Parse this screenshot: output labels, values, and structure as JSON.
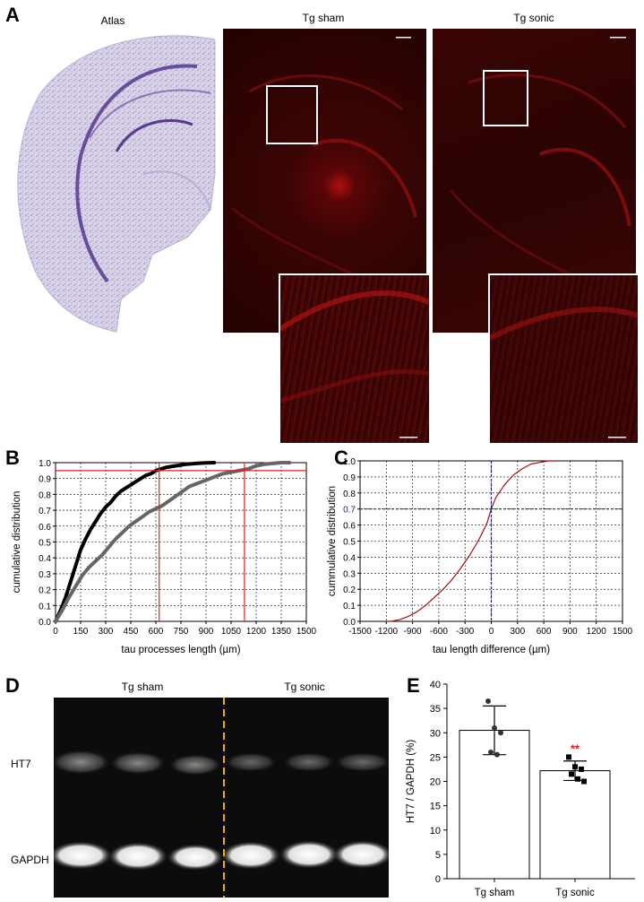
{
  "panel_letters": {
    "a": "A",
    "b": "B",
    "c": "C",
    "d": "D",
    "e": "E"
  },
  "panel_a": {
    "titles": {
      "atlas": "Atlas",
      "sham": "Tg sham",
      "sonic": "Tg sonic"
    }
  },
  "chart_data": [
    {
      "id": "B",
      "type": "line",
      "xlabel": "tau processes length (µm)",
      "ylabel": "cumulative distribution",
      "xlim": [
        0,
        1500
      ],
      "ylim": [
        0,
        1.0
      ],
      "xticks": [
        0,
        150,
        300,
        450,
        600,
        750,
        900,
        1050,
        1200,
        1350,
        1500
      ],
      "yticks": [
        0.0,
        0.1,
        0.2,
        0.3,
        0.4,
        0.5,
        0.6,
        0.7,
        0.8,
        0.9,
        1.0
      ],
      "grid": true,
      "series": [
        {
          "color": "#000000",
          "x": [
            0,
            30,
            60,
            90,
            120,
            150,
            180,
            210,
            240,
            270,
            300,
            330,
            360,
            390,
            420,
            450,
            480,
            510,
            540,
            570,
            600,
            630,
            660,
            690,
            720,
            750,
            780,
            810,
            840,
            870,
            900,
            950
          ],
          "y": [
            0,
            0.07,
            0.15,
            0.25,
            0.35,
            0.45,
            0.52,
            0.58,
            0.63,
            0.68,
            0.72,
            0.75,
            0.79,
            0.82,
            0.84,
            0.86,
            0.88,
            0.9,
            0.92,
            0.93,
            0.95,
            0.96,
            0.97,
            0.975,
            0.98,
            0.985,
            0.99,
            0.992,
            0.995,
            0.997,
            0.999,
            1.0
          ]
        },
        {
          "color": "#666666",
          "x": [
            0,
            40,
            80,
            120,
            160,
            200,
            240,
            280,
            320,
            360,
            400,
            440,
            480,
            520,
            560,
            600,
            640,
            680,
            720,
            760,
            800,
            850,
            900,
            950,
            1000,
            1050,
            1100,
            1150,
            1200,
            1250,
            1300,
            1350,
            1400
          ],
          "y": [
            0,
            0.07,
            0.15,
            0.22,
            0.29,
            0.34,
            0.38,
            0.42,
            0.47,
            0.52,
            0.56,
            0.6,
            0.63,
            0.66,
            0.69,
            0.71,
            0.73,
            0.76,
            0.79,
            0.82,
            0.85,
            0.87,
            0.89,
            0.91,
            0.93,
            0.94,
            0.95,
            0.96,
            0.98,
            0.99,
            0.995,
            1.0,
            1.0
          ]
        }
      ],
      "reference_lines": {
        "color": "#e02020",
        "y": 0.95,
        "x": [
          620,
          1130
        ]
      }
    },
    {
      "id": "C",
      "type": "line",
      "xlabel": "tau length difference (µm)",
      "ylabel": "cummulative distribution",
      "xlim": [
        -1500,
        1500
      ],
      "ylim": [
        0,
        1.0
      ],
      "xticks": [
        -1500,
        -1200,
        -900,
        -600,
        -300,
        0,
        300,
        600,
        900,
        1200,
        1500
      ],
      "yticks": [
        0.0,
        0.1,
        0.2,
        0.3,
        0.4,
        0.5,
        0.6,
        0.7,
        0.8,
        0.9,
        1.0
      ],
      "grid": true,
      "series": [
        {
          "color": "#a01010",
          "x": [
            -1150,
            -1050,
            -950,
            -850,
            -750,
            -650,
            -550,
            -450,
            -350,
            -250,
            -150,
            -50,
            0,
            50,
            150,
            250,
            350,
            450,
            550,
            650,
            750
          ],
          "y": [
            0,
            0.01,
            0.03,
            0.06,
            0.1,
            0.15,
            0.2,
            0.26,
            0.33,
            0.41,
            0.5,
            0.61,
            0.7,
            0.77,
            0.85,
            0.91,
            0.95,
            0.98,
            0.99,
            1.0,
            1.0
          ]
        }
      ],
      "reference_lines": {
        "color": "#1a237e",
        "y": 0.7,
        "x": [
          0
        ]
      }
    },
    {
      "id": "E",
      "type": "bar",
      "categories": [
        "Tg sham",
        "Tg sonic"
      ],
      "values": [
        30.5,
        22.2
      ],
      "errors": [
        5.0,
        2.0
      ],
      "points": [
        [
          36.5,
          31.0,
          30.0,
          26.0,
          25.5
        ],
        [
          25.0,
          23.0,
          22.5,
          21.5,
          20.5,
          20.0
        ]
      ],
      "significance": "**",
      "significance_color": "#e02020",
      "ylabel": "HT7 / GAPDH (%)",
      "xlabel": "",
      "ylim": [
        0,
        40
      ],
      "yticks": [
        0,
        5,
        10,
        15,
        20,
        25,
        30,
        35,
        40
      ]
    }
  ],
  "panel_d": {
    "group_labels": [
      "Tg sham",
      "Tg sonic"
    ],
    "row_labels": [
      "HT7",
      "GAPDH"
    ],
    "divider_color": "#f0b000"
  }
}
